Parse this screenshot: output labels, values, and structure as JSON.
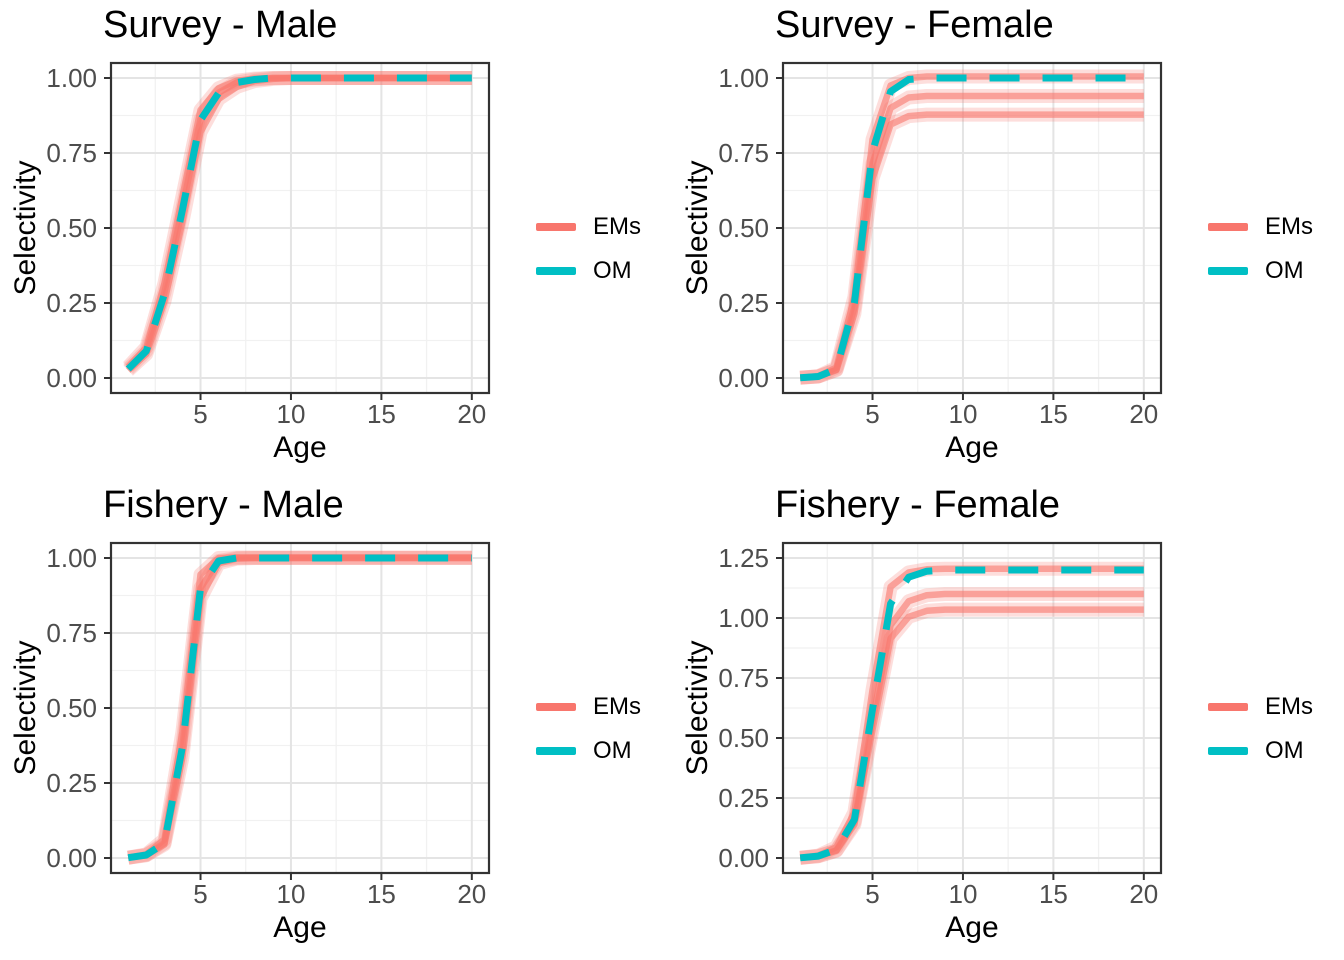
{
  "legend": {
    "em_label": "EMs",
    "om_label": "OM"
  },
  "colors": {
    "em_line": "#F8766D",
    "om_line": "#00BFC4",
    "panel_bg": "#FFFFFF",
    "grid_major": "#E4E4E4",
    "grid_minor": "#F1F1F1",
    "panel_border": "#333333",
    "axis_tick": "#333333",
    "tick_text": "#4D4D4D",
    "title_text": "#000000"
  },
  "chart_data": [
    {
      "type": "line",
      "id": "survey-male",
      "title": "Survey - Male",
      "xlabel": "Age",
      "ylabel": "Selectivity",
      "legend_position": "right",
      "grid": true,
      "x": [
        1,
        2,
        3,
        4,
        5,
        6,
        7,
        8,
        9,
        10,
        11,
        12,
        13,
        14,
        15,
        16,
        17,
        18,
        19,
        20
      ],
      "x_ticks": [
        5,
        10,
        15,
        20
      ],
      "x_minor": [
        2.5,
        7.5,
        12.5,
        17.5
      ],
      "y_ticks": [
        0,
        0.25,
        0.5,
        0.75,
        1
      ],
      "y_tick_labels": [
        "0.00",
        "0.25",
        "0.50",
        "0.75",
        "1.00"
      ],
      "y_minor": [
        0.125,
        0.375,
        0.625,
        0.875
      ],
      "xlim": [
        0.05,
        20.95
      ],
      "ylim": [
        -0.05,
        1.05
      ],
      "series": [
        {
          "name": "EM 1",
          "role": "EM",
          "values": [
            0.025,
            0.08,
            0.255,
            0.52,
            0.82,
            0.93,
            0.97,
            0.99,
            0.997,
            1,
            1,
            1,
            1,
            1,
            1,
            1,
            1,
            1,
            1,
            1
          ]
        },
        {
          "name": "EM 2",
          "role": "EM",
          "values": [
            0.03,
            0.09,
            0.285,
            0.565,
            0.862,
            0.951,
            0.985,
            0.995,
            1,
            1,
            1,
            1,
            1,
            1,
            1,
            1,
            1,
            1,
            1,
            1
          ]
        },
        {
          "name": "EM 3",
          "role": "EM",
          "values": [
            0.037,
            0.102,
            0.315,
            0.605,
            0.893,
            0.966,
            0.991,
            0.998,
            1,
            1,
            1,
            1,
            1,
            1,
            1,
            1,
            1,
            1,
            1,
            1
          ]
        },
        {
          "name": "OM",
          "role": "OM",
          "values": [
            0.03,
            0.09,
            0.28,
            0.56,
            0.86,
            0.95,
            0.985,
            0.995,
            1,
            1,
            1,
            1,
            1,
            1,
            1,
            1,
            1,
            1,
            1,
            1
          ]
        }
      ]
    },
    {
      "type": "line",
      "id": "survey-female",
      "title": "Survey - Female",
      "xlabel": "Age",
      "ylabel": "Selectivity",
      "legend_position": "right",
      "grid": true,
      "x": [
        1,
        2,
        3,
        4,
        5,
        6,
        7,
        8,
        9,
        10,
        11,
        12,
        13,
        14,
        15,
        16,
        17,
        18,
        19,
        20
      ],
      "x_ticks": [
        5,
        10,
        15,
        20
      ],
      "x_minor": [
        2.5,
        7.5,
        12.5,
        17.5
      ],
      "y_ticks": [
        0,
        0.25,
        0.5,
        0.75,
        1
      ],
      "y_tick_labels": [
        "0.00",
        "0.25",
        "0.50",
        "0.75",
        "1.00"
      ],
      "y_minor": [
        0.125,
        0.375,
        0.625,
        0.875
      ],
      "xlim": [
        0.05,
        20.95
      ],
      "ylim": [
        -0.05,
        1.05
      ],
      "series": [
        {
          "name": "EM 1",
          "role": "EM",
          "values": [
            0.001,
            0.006,
            0.035,
            0.27,
            0.795,
            0.975,
            1.0,
            1.005,
            1.005,
            1.005,
            1.005,
            1.005,
            1.005,
            1.005,
            1.005,
            1.005,
            1.005,
            1.005,
            1.005,
            1.005
          ]
        },
        {
          "name": "EM 2",
          "role": "EM",
          "values": [
            0.001,
            0.005,
            0.028,
            0.235,
            0.715,
            0.9,
            0.935,
            0.94,
            0.94,
            0.94,
            0.94,
            0.94,
            0.94,
            0.94,
            0.94,
            0.94,
            0.94,
            0.94,
            0.94,
            0.94
          ]
        },
        {
          "name": "EM 3",
          "role": "EM",
          "values": [
            0.001,
            0.005,
            0.026,
            0.215,
            0.665,
            0.845,
            0.873,
            0.878,
            0.878,
            0.878,
            0.878,
            0.878,
            0.878,
            0.878,
            0.878,
            0.878,
            0.878,
            0.878,
            0.878,
            0.878
          ]
        },
        {
          "name": "OM",
          "role": "OM",
          "values": [
            0.001,
            0.005,
            0.03,
            0.25,
            0.755,
            0.955,
            0.995,
            1,
            1,
            1,
            1,
            1,
            1,
            1,
            1,
            1,
            1,
            1,
            1,
            1
          ]
        }
      ]
    },
    {
      "type": "line",
      "id": "fishery-male",
      "title": "Fishery - Male",
      "xlabel": "Age",
      "ylabel": "Selectivity",
      "legend_position": "right",
      "grid": true,
      "x": [
        1,
        2,
        3,
        4,
        5,
        6,
        7,
        8,
        9,
        10,
        11,
        12,
        13,
        14,
        15,
        16,
        17,
        18,
        19,
        20
      ],
      "x_ticks": [
        5,
        10,
        15,
        20
      ],
      "x_minor": [
        2.5,
        7.5,
        12.5,
        17.5
      ],
      "y_ticks": [
        0,
        0.25,
        0.5,
        0.75,
        1
      ],
      "y_tick_labels": [
        "0.00",
        "0.25",
        "0.50",
        "0.75",
        "1.00"
      ],
      "y_minor": [
        0.125,
        0.375,
        0.625,
        0.875
      ],
      "xlim": [
        0.05,
        20.95
      ],
      "ylim": [
        -0.05,
        1.05
      ],
      "series": [
        {
          "name": "EM 1",
          "role": "EM",
          "values": [
            0.001,
            0.012,
            0.062,
            0.42,
            0.945,
            1.0,
            1.002,
            1.002,
            1.002,
            1.002,
            1.002,
            1.002,
            1.002,
            1.002,
            1.002,
            1.002,
            1.002,
            1.002,
            1.002,
            1.002
          ]
        },
        {
          "name": "EM 2",
          "role": "EM",
          "values": [
            0.001,
            0.01,
            0.05,
            0.37,
            0.9,
            0.99,
            1,
            1,
            1,
            1,
            1,
            1,
            1,
            1,
            1,
            1,
            1,
            1,
            1,
            1
          ]
        },
        {
          "name": "EM 3",
          "role": "EM",
          "values": [
            0.001,
            0.009,
            0.045,
            0.335,
            0.865,
            0.982,
            0.998,
            1,
            1,
            1,
            1,
            1,
            1,
            1,
            1,
            1,
            1,
            1,
            1,
            1
          ]
        },
        {
          "name": "OM",
          "role": "OM",
          "values": [
            0.001,
            0.01,
            0.05,
            0.37,
            0.9,
            0.99,
            1,
            1,
            1,
            1,
            1,
            1,
            1,
            1,
            1,
            1,
            1,
            1,
            1,
            1
          ]
        }
      ]
    },
    {
      "type": "line",
      "id": "fishery-female",
      "title": "Fishery - Female",
      "xlabel": "Age",
      "ylabel": "Selectivity",
      "legend_position": "right",
      "grid": true,
      "x": [
        1,
        2,
        3,
        4,
        5,
        6,
        7,
        8,
        9,
        10,
        11,
        12,
        13,
        14,
        15,
        16,
        17,
        18,
        19,
        20
      ],
      "x_ticks": [
        5,
        10,
        15,
        20
      ],
      "x_minor": [
        2.5,
        7.5,
        12.5,
        17.5
      ],
      "y_ticks": [
        0,
        0.25,
        0.5,
        0.75,
        1,
        1.25
      ],
      "y_tick_labels": [
        "0.00",
        "0.25",
        "0.50",
        "0.75",
        "1.00",
        "1.25"
      ],
      "y_minor": [
        0.125,
        0.375,
        0.625,
        0.875,
        1.125
      ],
      "xlim": [
        0.05,
        20.95
      ],
      "ylim": [
        -0.0625,
        1.3125
      ],
      "series": [
        {
          "name": "EM 1",
          "role": "EM",
          "values": [
            0.001,
            0.01,
            0.045,
            0.19,
            0.7,
            1.13,
            1.19,
            1.203,
            1.205,
            1.205,
            1.205,
            1.205,
            1.205,
            1.205,
            1.205,
            1.205,
            1.205,
            1.205,
            1.205,
            1.205
          ]
        },
        {
          "name": "EM 2",
          "role": "EM",
          "values": [
            0.001,
            0.008,
            0.032,
            0.15,
            0.57,
            0.97,
            1.07,
            1.095,
            1.1,
            1.1,
            1.1,
            1.1,
            1.1,
            1.1,
            1.1,
            1.1,
            1.1,
            1.1,
            1.1,
            1.1
          ]
        },
        {
          "name": "EM 3",
          "role": "EM",
          "values": [
            0.001,
            0.007,
            0.03,
            0.14,
            0.535,
            0.915,
            1.005,
            1.03,
            1.035,
            1.035,
            1.035,
            1.035,
            1.035,
            1.035,
            1.035,
            1.035,
            1.035,
            1.035,
            1.035,
            1.035
          ]
        },
        {
          "name": "OM",
          "role": "OM",
          "values": [
            0.001,
            0.008,
            0.035,
            0.16,
            0.62,
            1.06,
            1.17,
            1.195,
            1.2,
            1.2,
            1.2,
            1.2,
            1.2,
            1.2,
            1.2,
            1.2,
            1.2,
            1.2,
            1.2,
            1.2
          ]
        }
      ]
    }
  ]
}
